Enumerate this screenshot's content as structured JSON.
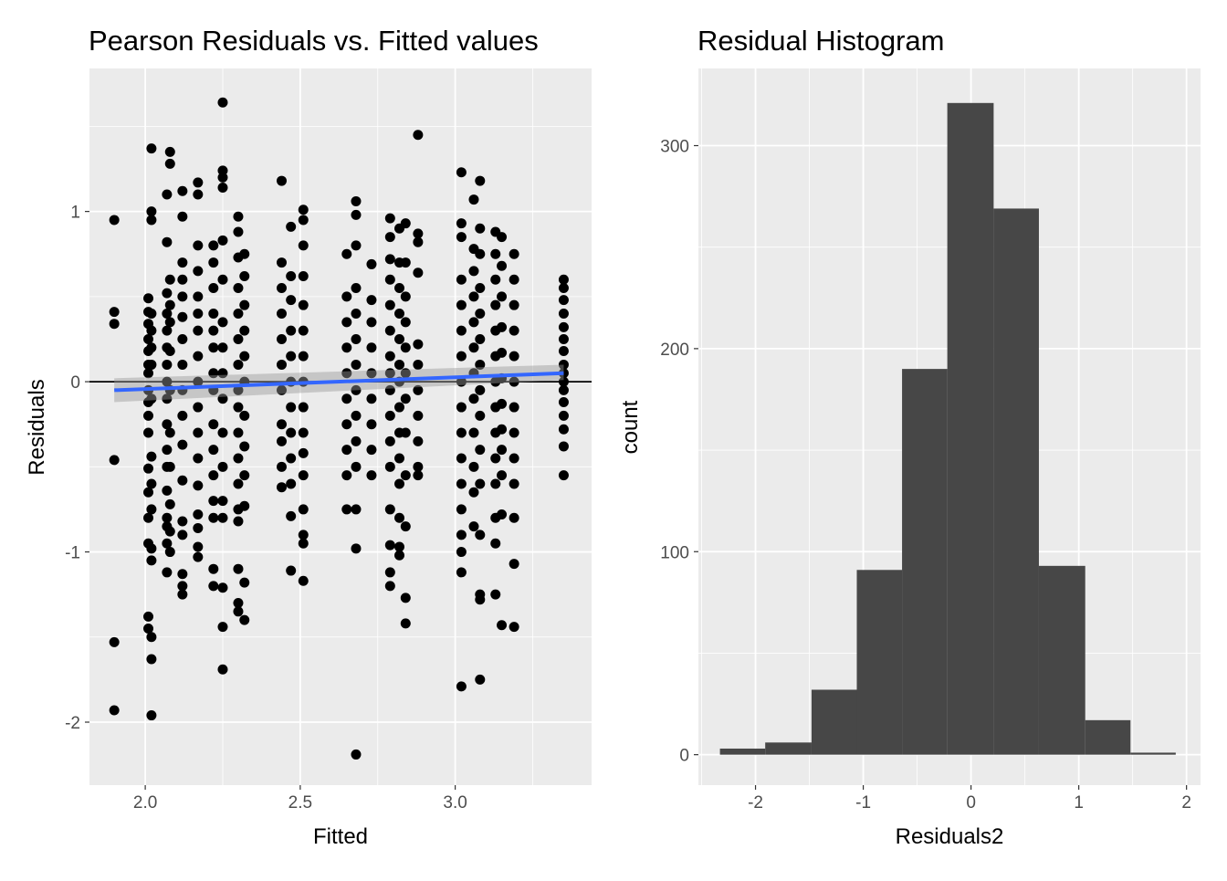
{
  "chart_data": [
    {
      "type": "scatter",
      "title": "Pearson Residuals vs. Fitted values",
      "xlabel": "Fitted",
      "ylabel": "Residuals",
      "xlim": [
        1.82,
        3.44
      ],
      "ylim": [
        -2.37,
        1.84
      ],
      "x_ticks": [
        2.0,
        2.5,
        3.0
      ],
      "x_tick_labels": [
        "2.0",
        "2.5",
        "3.0"
      ],
      "y_ticks": [
        -2,
        -1,
        0,
        1
      ],
      "y_tick_labels": [
        "-2",
        "-1",
        "0",
        "1"
      ],
      "grid": true,
      "hline": 0,
      "point_color": "#000000",
      "smooth": {
        "color": "#3366FF",
        "band_color": "#999999",
        "x": [
          1.9,
          3.35
        ],
        "y": [
          -0.05,
          0.05
        ],
        "se_low": [
          -0.12,
          0.01
        ],
        "se_high": [
          0.02,
          0.1
        ]
      },
      "columns": [
        {
          "x": 1.9,
          "r": [
            0.95,
            0.41,
            0.34,
            -0.46,
            -1.53,
            -1.93
          ]
        },
        {
          "x": 2.01,
          "r": [
            0.49,
            0.41,
            0.34,
            0.25,
            0.18,
            0.1,
            0.05,
            -0.05,
            -0.12,
            -0.2,
            -0.3,
            -0.51,
            -0.65,
            -0.8,
            -0.95,
            -1.38,
            -1.45
          ]
        },
        {
          "x": 2.02,
          "r": [
            1.37,
            1.0,
            0.95,
            0.4,
            0.3,
            0.2,
            0.1,
            -0.1,
            -0.44,
            -0.6,
            -0.75,
            -0.98,
            -1.05,
            -1.5,
            -1.63,
            -1.96
          ]
        },
        {
          "x": 2.07,
          "r": [
            1.1,
            0.82,
            0.52,
            0.4,
            0.3,
            0.2,
            0.1,
            0,
            -0.1,
            -0.25,
            -0.4,
            -0.5,
            -0.64,
            -0.8,
            -0.85,
            -0.95,
            -1.12
          ]
        },
        {
          "x": 2.08,
          "r": [
            1.35,
            1.28,
            0.6,
            0.45,
            0.35,
            0.18,
            -0.05,
            -0.3,
            -0.5,
            -0.72,
            -0.88,
            -1.0
          ]
        },
        {
          "x": 2.12,
          "r": [
            1.12,
            0.97,
            0.7,
            0.6,
            0.5,
            0.38,
            0.25,
            0.1,
            -0.05,
            -0.2,
            -0.37,
            -0.58,
            -0.82,
            -0.9,
            -1.13,
            -1.2,
            -1.25
          ]
        },
        {
          "x": 2.17,
          "r": [
            1.17,
            1.1,
            0.8,
            0.65,
            0.5,
            0.4,
            0.3,
            0.15,
            0,
            -0.15,
            -0.3,
            -0.45,
            -0.61,
            -0.78,
            -0.86,
            -0.97,
            -1.03
          ]
        },
        {
          "x": 2.22,
          "r": [
            0.8,
            0.7,
            0.55,
            0.4,
            0.3,
            0.2,
            0.05,
            -0.05,
            -0.25,
            -0.4,
            -0.55,
            -0.7,
            -0.8,
            -1.1,
            -1.2
          ]
        },
        {
          "x": 2.25,
          "r": [
            1.64,
            1.24,
            1.2,
            1.14,
            0.83,
            0.6,
            0.35,
            0.2,
            0.05,
            -0.1,
            -0.3,
            -0.5,
            -0.7,
            -0.8,
            -1.21,
            -1.44,
            -1.69
          ]
        },
        {
          "x": 2.3,
          "r": [
            0.97,
            0.88,
            0.73,
            0.55,
            0.4,
            0.25,
            0.1,
            -0.05,
            -0.15,
            -0.3,
            -0.45,
            -0.6,
            -0.75,
            -0.82,
            -1.1,
            -1.3,
            -1.35
          ]
        },
        {
          "x": 2.32,
          "r": [
            0.75,
            0.62,
            0.45,
            0.3,
            0.15,
            0,
            -0.2,
            -0.38,
            -0.55,
            -0.73,
            -1.18,
            -1.4
          ]
        },
        {
          "x": 2.44,
          "r": [
            1.18,
            0.7,
            0.55,
            0.4,
            0.25,
            0.1,
            -0.05,
            -0.25,
            -0.35,
            -0.5,
            -0.62
          ]
        },
        {
          "x": 2.47,
          "r": [
            0.91,
            0.62,
            0.48,
            0.3,
            0.15,
            0.0,
            -0.15,
            -0.3,
            -0.45,
            -0.6,
            -0.79,
            -1.11
          ]
        },
        {
          "x": 2.51,
          "r": [
            1.01,
            0.95,
            0.8,
            0.62,
            0.45,
            0.3,
            0.15,
            0.0,
            -0.15,
            -0.3,
            -0.42,
            -0.55,
            -0.75,
            -0.9,
            -0.95,
            -1.17
          ]
        },
        {
          "x": 2.65,
          "r": [
            0.75,
            0.5,
            0.35,
            0.2,
            0.05,
            -0.1,
            -0.25,
            -0.4,
            -0.55,
            -0.75
          ]
        },
        {
          "x": 2.68,
          "r": [
            1.06,
            0.98,
            0.8,
            0.55,
            0.4,
            0.25,
            0.1,
            -0.05,
            -0.2,
            -0.35,
            -0.5,
            -0.75,
            -0.98,
            -2.19
          ]
        },
        {
          "x": 2.73,
          "r": [
            0.69,
            0.48,
            0.35,
            0.2,
            0.05,
            -0.1,
            -0.25,
            -0.4,
            -0.55
          ]
        },
        {
          "x": 2.79,
          "r": [
            0.96,
            0.85,
            0.72,
            0.6,
            0.45,
            0.3,
            0.15,
            0.05,
            -0.05,
            -0.2,
            -0.35,
            -0.5,
            -0.75,
            -0.96,
            -1.2,
            -1.12
          ]
        },
        {
          "x": 2.82,
          "r": [
            0.9,
            0.7,
            0.55,
            0.4,
            0.25,
            0.1,
            0,
            -0.15,
            -0.3,
            -0.45,
            -0.6,
            -0.8,
            -0.97,
            -1.02
          ]
        },
        {
          "x": 2.84,
          "r": [
            0.93,
            0.7,
            0.5,
            0.35,
            0.2,
            0.05,
            -0.1,
            -0.3,
            -0.55,
            -0.85,
            -1.27,
            -1.42
          ]
        },
        {
          "x": 2.88,
          "r": [
            1.45,
            0.87,
            0.82,
            0.64,
            0.22,
            0.1,
            -0.05,
            -0.2,
            -0.35,
            -0.5,
            -0.55
          ]
        },
        {
          "x": 3.02,
          "r": [
            1.23,
            0.93,
            0.85,
            0.6,
            0.45,
            0.3,
            0.15,
            0,
            -0.15,
            -0.3,
            -0.45,
            -0.6,
            -0.75,
            -0.9,
            -1.0,
            -1.12,
            -1.79
          ]
        },
        {
          "x": 3.06,
          "r": [
            1.07,
            0.78,
            0.65,
            0.5,
            0.35,
            0.2,
            0.05,
            -0.1,
            -0.3,
            -0.5,
            -0.65,
            -0.85
          ]
        },
        {
          "x": 3.08,
          "r": [
            1.18,
            0.9,
            0.75,
            0.55,
            0.4,
            0.25,
            0.1,
            -0.05,
            -0.2,
            -0.4,
            -0.6,
            -0.9,
            -1.25,
            -1.28,
            -1.75
          ]
        },
        {
          "x": 3.13,
          "r": [
            0.88,
            0.75,
            0.6,
            0.45,
            0.3,
            0.15,
            0,
            -0.15,
            -0.3,
            -0.45,
            -0.6,
            -0.8,
            -0.95,
            -1.25
          ]
        },
        {
          "x": 3.15,
          "r": [
            0.85,
            0.68,
            0.5,
            0.32,
            0.17,
            0.02,
            -0.13,
            -0.28,
            -0.4,
            -0.55,
            -0.78,
            -1.43
          ]
        },
        {
          "x": 3.19,
          "r": [
            0.75,
            0.6,
            0.45,
            0.3,
            0.15,
            0,
            -0.15,
            -0.3,
            -0.45,
            -0.6,
            -0.8,
            -1.07,
            -1.44
          ]
        },
        {
          "x": 3.35,
          "r": [
            0.6,
            0.55,
            0.48,
            0.4,
            0.32,
            0.25,
            0.18,
            0.1,
            0.05,
            0,
            -0.05,
            -0.12,
            -0.2,
            -0.28,
            -0.38,
            -0.55
          ]
        }
      ]
    },
    {
      "type": "bar",
      "subtype": "histogram",
      "title": "Residual Histogram",
      "xlabel": "Residuals2",
      "ylabel": "count",
      "xlim": [
        -2.53,
        2.13
      ],
      "ylim": [
        -15,
        338
      ],
      "x_ticks": [
        -2,
        -1,
        0,
        1,
        2
      ],
      "x_tick_labels": [
        "-2",
        "-1",
        "0",
        "1",
        "2"
      ],
      "y_ticks": [
        0,
        100,
        200,
        300
      ],
      "y_tick_labels": [
        "0",
        "100",
        "200",
        "300"
      ],
      "grid": true,
      "bar_color": "#474747",
      "bin_edges": [
        -2.33,
        -1.91,
        -1.48,
        -1.06,
        -0.64,
        -0.22,
        0.21,
        0.63,
        1.06,
        1.48,
        1.9
      ],
      "values": [
        3,
        6,
        32,
        91,
        190,
        321,
        269,
        93,
        17,
        1
      ]
    }
  ]
}
